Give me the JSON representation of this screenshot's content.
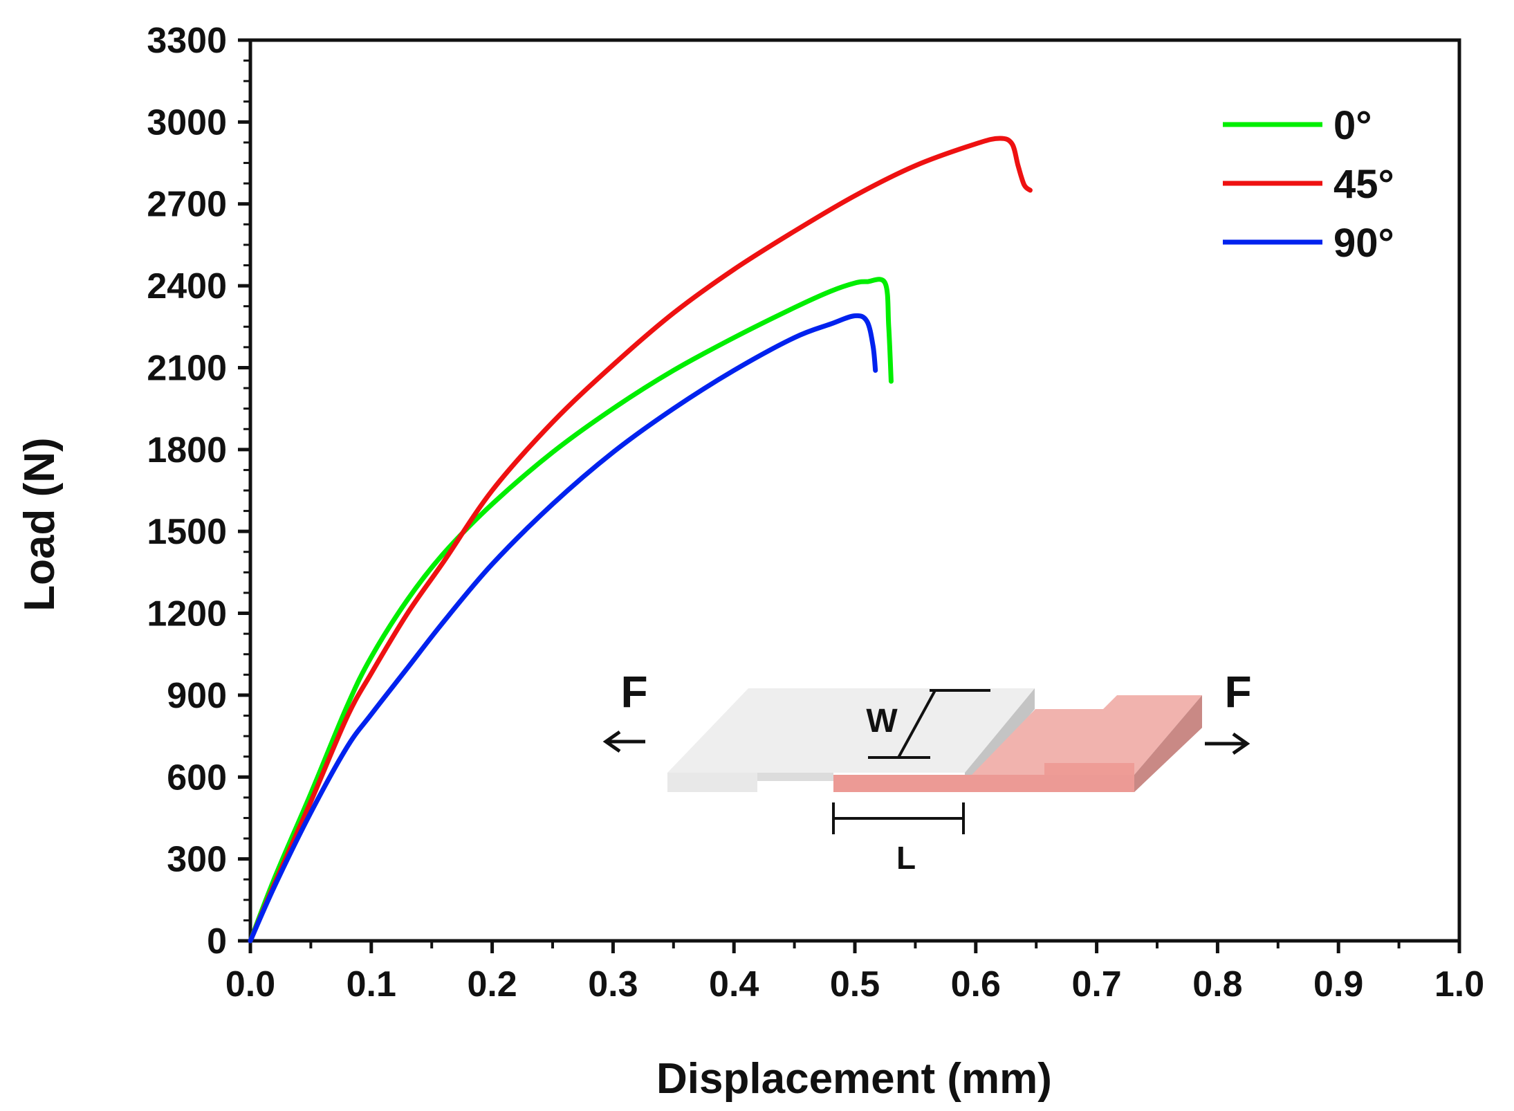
{
  "chart_data": {
    "type": "line",
    "xlabel": "Displacement (mm)",
    "ylabel": "Load (N)",
    "xlim": [
      0,
      1.0
    ],
    "ylim": [
      0,
      3300
    ],
    "xticks": [
      "0.0",
      "0.1",
      "0.2",
      "0.3",
      "0.4",
      "0.5",
      "0.6",
      "0.7",
      "0.8",
      "0.9",
      "1.0"
    ],
    "yticks": [
      "0",
      "300",
      "600",
      "900",
      "1200",
      "1500",
      "1800",
      "2100",
      "2400",
      "2700",
      "3000",
      "3300"
    ],
    "grid": false,
    "legend_position": "top-right",
    "series": [
      {
        "name": "0°",
        "color": "#00ee00",
        "x": [
          0,
          0.02,
          0.05,
          0.08,
          0.1,
          0.13,
          0.16,
          0.2,
          0.25,
          0.3,
          0.35,
          0.4,
          0.45,
          0.48,
          0.5,
          0.51,
          0.525,
          0.528,
          0.53
        ],
        "y": [
          0,
          230,
          540,
          860,
          1040,
          1250,
          1420,
          1600,
          1790,
          1950,
          2090,
          2210,
          2320,
          2380,
          2410,
          2415,
          2410,
          2250,
          2050
        ]
      },
      {
        "name": "45°",
        "color": "#ee1111",
        "x": [
          0,
          0.02,
          0.05,
          0.08,
          0.1,
          0.13,
          0.16,
          0.2,
          0.25,
          0.3,
          0.35,
          0.4,
          0.45,
          0.5,
          0.55,
          0.6,
          0.62,
          0.63,
          0.635,
          0.64,
          0.645
        ],
        "y": [
          0,
          210,
          510,
          820,
          980,
          1200,
          1390,
          1650,
          1900,
          2110,
          2300,
          2460,
          2600,
          2730,
          2840,
          2920,
          2940,
          2920,
          2840,
          2770,
          2750
        ]
      },
      {
        "name": "90°",
        "color": "#0022ee",
        "x": [
          0,
          0.02,
          0.05,
          0.08,
          0.1,
          0.13,
          0.16,
          0.2,
          0.25,
          0.3,
          0.35,
          0.4,
          0.45,
          0.48,
          0.5,
          0.51,
          0.515,
          0.517
        ],
        "y": [
          0,
          200,
          470,
          710,
          830,
          1000,
          1170,
          1380,
          1600,
          1790,
          1950,
          2090,
          2210,
          2260,
          2290,
          2270,
          2180,
          2090
        ]
      }
    ],
    "inset": {
      "force_left": "F",
      "force_right": "F",
      "width_label": "W",
      "length_label": "L"
    }
  }
}
